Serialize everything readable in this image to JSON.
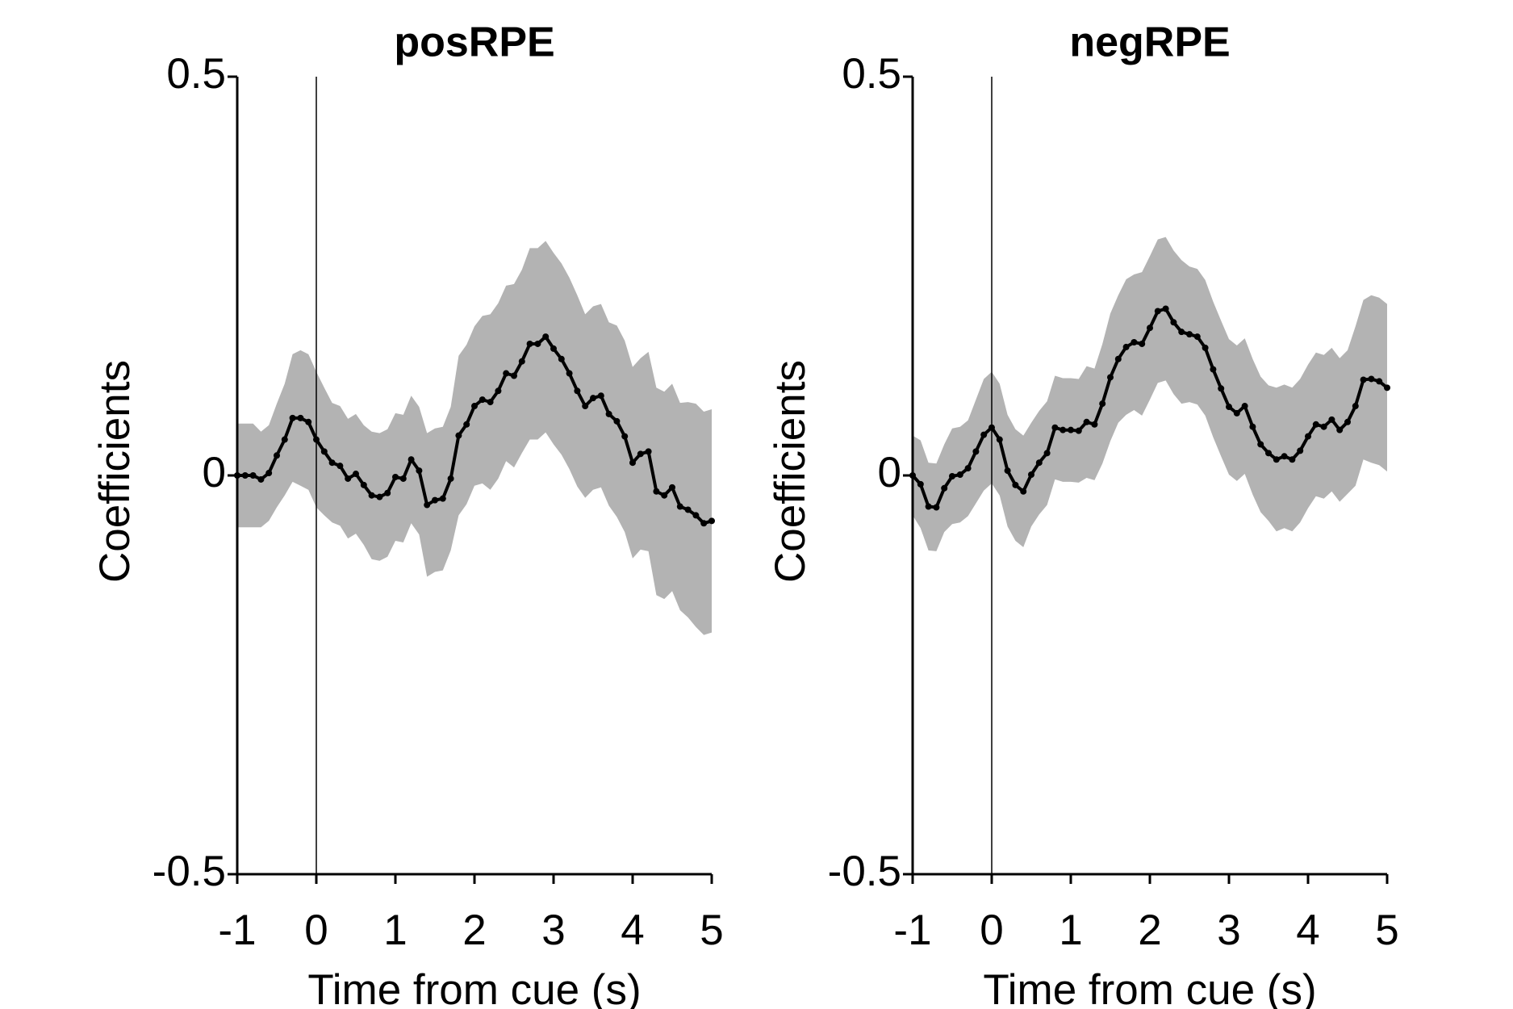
{
  "chart_data": [
    {
      "type": "line",
      "title": "posRPE",
      "xlabel": "Time from cue (s)",
      "ylabel": "Coefficients",
      "x": [
        -1,
        -0.9,
        -0.8,
        -0.7,
        -0.6,
        -0.5,
        -0.4,
        -0.3,
        -0.2,
        -0.1,
        0,
        0.1,
        0.2,
        0.3,
        0.4,
        0.5,
        0.6,
        0.7,
        0.8,
        0.9,
        1,
        1.1,
        1.2,
        1.3,
        1.4,
        1.5,
        1.6,
        1.7,
        1.8,
        1.9,
        2,
        2.1,
        2.2,
        2.3,
        2.4,
        2.5,
        2.6,
        2.7,
        2.8,
        2.9,
        3,
        3.1,
        3.2,
        3.3,
        3.4,
        3.5,
        3.6,
        3.7,
        3.8,
        3.9,
        4,
        4.1,
        4.2,
        4.3,
        4.4,
        4.5,
        4.6,
        4.7,
        4.8,
        4.9,
        5
      ],
      "series": [
        {
          "color": "#000000",
          "band_color": "#b3b3b3",
          "values": [
            0,
            0,
            0,
            -0.005,
            0.003,
            0.025,
            0.045,
            0.072,
            0.072,
            0.067,
            0.045,
            0.03,
            0.016,
            0.012,
            -0.004,
            0.002,
            -0.012,
            -0.025,
            -0.027,
            -0.022,
            -0.002,
            -0.004,
            0.02,
            0.006,
            -0.037,
            -0.031,
            -0.029,
            -0.004,
            0.05,
            0.064,
            0.087,
            0.095,
            0.092,
            0.106,
            0.128,
            0.125,
            0.143,
            0.165,
            0.165,
            0.174,
            0.159,
            0.146,
            0.128,
            0.106,
            0.087,
            0.097,
            0.1,
            0.077,
            0.068,
            0.049,
            0.016,
            0.027,
            0.03,
            -0.02,
            -0.025,
            -0.015,
            -0.039,
            -0.043,
            -0.05,
            -0.06,
            -0.057
          ],
          "errors": [
            0.065,
            0.065,
            0.065,
            0.06,
            0.06,
            0.065,
            0.07,
            0.08,
            0.085,
            0.085,
            0.085,
            0.08,
            0.075,
            0.075,
            0.075,
            0.075,
            0.075,
            0.08,
            0.08,
            0.08,
            0.08,
            0.08,
            0.08,
            0.08,
            0.09,
            0.09,
            0.09,
            0.09,
            0.1,
            0.1,
            0.1,
            0.105,
            0.11,
            0.11,
            0.11,
            0.115,
            0.115,
            0.12,
            0.12,
            0.12,
            0.12,
            0.12,
            0.12,
            0.12,
            0.115,
            0.115,
            0.115,
            0.115,
            0.12,
            0.12,
            0.12,
            0.12,
            0.125,
            0.13,
            0.13,
            0.13,
            0.13,
            0.135,
            0.14,
            0.14,
            0.14
          ]
        }
      ],
      "xlim": [
        -1,
        5
      ],
      "ylim": [
        -0.5,
        0.5
      ],
      "xticks": [
        -1,
        0,
        1,
        2,
        3,
        4,
        5
      ],
      "yticks": [
        -0.5,
        0,
        0.5
      ],
      "vline": 0
    },
    {
      "type": "line",
      "title": "negRPE",
      "xlabel": "Time from cue (s)",
      "ylabel": "Coefficients",
      "x": [
        -1,
        -0.9,
        -0.8,
        -0.7,
        -0.6,
        -0.5,
        -0.4,
        -0.3,
        -0.2,
        -0.1,
        0,
        0.1,
        0.2,
        0.3,
        0.4,
        0.5,
        0.6,
        0.7,
        0.8,
        0.9,
        1,
        1.1,
        1.2,
        1.3,
        1.4,
        1.5,
        1.6,
        1.7,
        1.8,
        1.9,
        2,
        2.1,
        2.2,
        2.3,
        2.4,
        2.5,
        2.6,
        2.7,
        2.8,
        2.9,
        3,
        3.1,
        3.2,
        3.3,
        3.4,
        3.5,
        3.6,
        3.7,
        3.8,
        3.9,
        4,
        4.1,
        4.2,
        4.3,
        4.4,
        4.5,
        4.6,
        4.7,
        4.8,
        4.9,
        5
      ],
      "series": [
        {
          "color": "#000000",
          "band_color": "#b3b3b3",
          "values": [
            0,
            -0.011,
            -0.039,
            -0.04,
            -0.016,
            -0.001,
            0.001,
            0.009,
            0.03,
            0.051,
            0.06,
            0.045,
            0.006,
            -0.012,
            -0.02,
            0.001,
            0.016,
            0.028,
            0.06,
            0.057,
            0.057,
            0.056,
            0.067,
            0.064,
            0.09,
            0.123,
            0.146,
            0.161,
            0.167,
            0.165,
            0.185,
            0.206,
            0.209,
            0.192,
            0.18,
            0.177,
            0.174,
            0.16,
            0.133,
            0.109,
            0.086,
            0.078,
            0.087,
            0.061,
            0.039,
            0.028,
            0.02,
            0.024,
            0.02,
            0.031,
            0.049,
            0.064,
            0.061,
            0.07,
            0.057,
            0.067,
            0.087,
            0.12,
            0.121,
            0.118,
            0.11
          ],
          "errors": [
            0.05,
            0.055,
            0.055,
            0.055,
            0.055,
            0.06,
            0.06,
            0.06,
            0.065,
            0.07,
            0.07,
            0.07,
            0.07,
            0.07,
            0.07,
            0.065,
            0.065,
            0.065,
            0.065,
            0.065,
            0.065,
            0.065,
            0.07,
            0.07,
            0.075,
            0.08,
            0.08,
            0.085,
            0.085,
            0.09,
            0.09,
            0.09,
            0.09,
            0.09,
            0.09,
            0.085,
            0.085,
            0.085,
            0.085,
            0.085,
            0.085,
            0.085,
            0.085,
            0.085,
            0.085,
            0.085,
            0.09,
            0.09,
            0.09,
            0.09,
            0.09,
            0.09,
            0.09,
            0.09,
            0.09,
            0.09,
            0.1,
            0.1,
            0.105,
            0.105,
            0.105
          ]
        }
      ],
      "xlim": [
        -1,
        5
      ],
      "ylim": [
        -0.5,
        0.5
      ],
      "xticks": [
        -1,
        0,
        1,
        2,
        3,
        4,
        5
      ],
      "yticks": [
        -0.5,
        0,
        0.5
      ],
      "vline": 0
    }
  ]
}
